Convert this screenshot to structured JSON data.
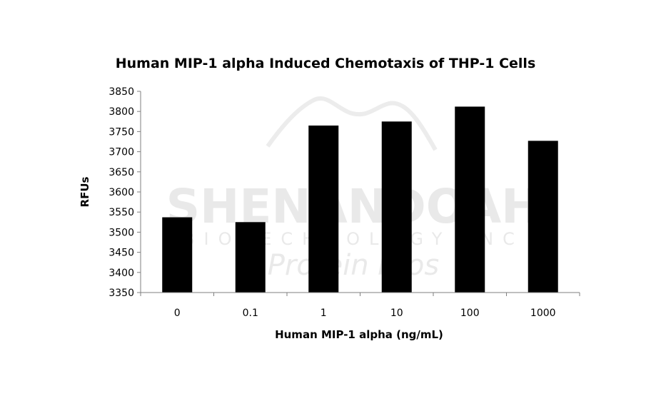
{
  "chart_data": {
    "type": "bar",
    "title": "Human MIP-1 alpha Induced Chemotaxis of THP-1 Cells",
    "xlabel": "Human MIP-1 alpha (ng/mL)",
    "ylabel": "RFUs",
    "categories": [
      "0",
      "0.1",
      "1",
      "10",
      "100",
      "1000"
    ],
    "values": [
      3537,
      3525,
      3765,
      3775,
      3812,
      3727
    ],
    "ylim": [
      3350,
      3850
    ],
    "yticks": [
      3350,
      3400,
      3450,
      3500,
      3550,
      3600,
      3650,
      3700,
      3750,
      3800,
      3850
    ],
    "grid": false,
    "legend": "none",
    "bar_color": "#000000"
  },
  "watermark": {
    "line1": "SHENANDOAH",
    "line2": "BIOTECHNOLOGY INC",
    "line3": "Protein Pros"
  }
}
